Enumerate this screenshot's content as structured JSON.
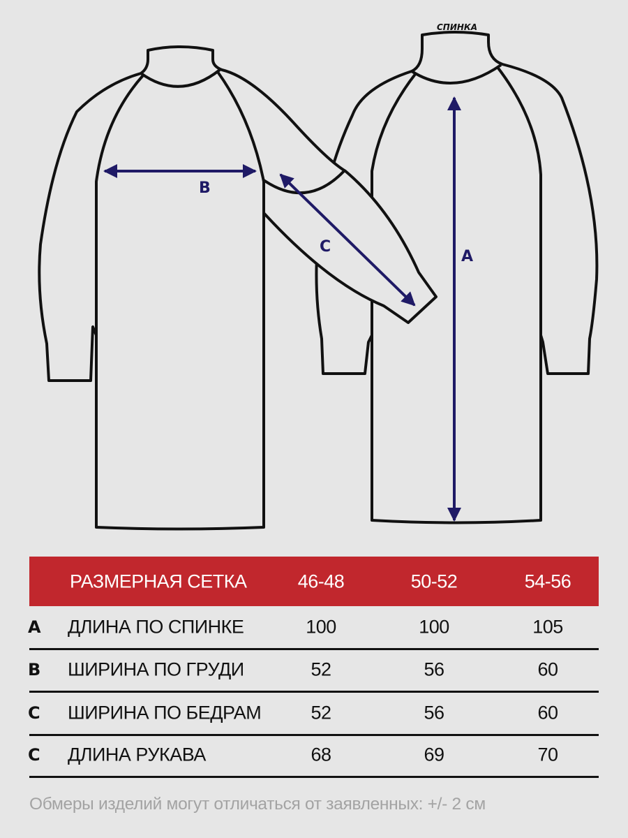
{
  "diagram": {
    "back_view_label": "СПИНКА",
    "labels": {
      "a": "A",
      "b": "B",
      "c": "C"
    },
    "arrow_color": "#1f1a66",
    "outline_color": "#111111"
  },
  "table": {
    "header_color": "#c1272d",
    "title": "РАЗМЕРНАЯ СЕТКА",
    "sizes": [
      "46-48",
      "50-52",
      "54-56"
    ],
    "rows": [
      {
        "key": "A",
        "label": "ДЛИНА ПО СПИНКЕ",
        "values": [
          "100",
          "100",
          "105"
        ]
      },
      {
        "key": "B",
        "label": "ШИРИНА ПО ГРУДИ",
        "values": [
          "52",
          "56",
          "60"
        ]
      },
      {
        "key": "C",
        "label": "ШИРИНА ПО БЕДРАМ",
        "values": [
          "52",
          "56",
          "60"
        ]
      },
      {
        "key": "C",
        "label": "ДЛИНА РУКАВА",
        "values": [
          "68",
          "69",
          "70"
        ]
      }
    ]
  },
  "footnote": "Обмеры изделий могут отличаться от заявленных: +/- 2 см"
}
